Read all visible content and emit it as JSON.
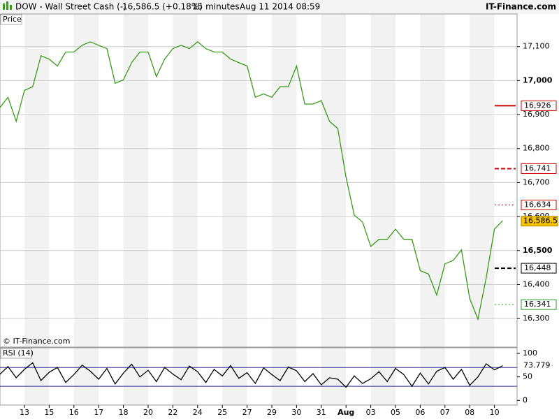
{
  "header": {
    "instrument": "DOW - Wall Street Cash (-)",
    "quote": "16,586.5 (+0.18%)",
    "interval": "15 minutes",
    "timestamp": "Aug 11 2014 08:59",
    "brand": "IT-Finance.com"
  },
  "chart_data": [
    {
      "type": "line",
      "title": "Price",
      "credit": "© IT-Finance.com",
      "categories": [
        null,
        null,
        null,
        "13",
        null,
        null,
        "15",
        null,
        null,
        "16",
        null,
        null,
        "17",
        null,
        null,
        "18",
        null,
        null,
        "20",
        null,
        null,
        "22",
        null,
        null,
        "24",
        null,
        null,
        "25",
        null,
        null,
        "27",
        null,
        null,
        "29",
        null,
        null,
        "30",
        null,
        null,
        "31",
        null,
        null,
        "Aug",
        null,
        null,
        "03",
        null,
        null,
        "05",
        null,
        null,
        "06",
        null,
        null,
        "07",
        null,
        null,
        "08",
        null,
        null,
        "10",
        null
      ],
      "series": [
        {
          "name": "Price",
          "color": "#3a9a1a",
          "values": [
            16920,
            16951,
            16880,
            16971,
            16982,
            17073,
            17063,
            17043,
            17084,
            17084,
            17104,
            17114,
            17104,
            17094,
            16992,
            17002,
            17053,
            17084,
            17084,
            17012,
            17063,
            17094,
            17104,
            17094,
            17114,
            17094,
            17084,
            17084,
            17063,
            17053,
            17043,
            16951,
            16961,
            16951,
            16982,
            16982,
            17043,
            16931,
            16931,
            16941,
            16880,
            16859,
            16716,
            16604,
            16584,
            16512,
            16533,
            16533,
            16563,
            16533,
            16533,
            16441,
            16431,
            16369,
            16461,
            16471,
            16502,
            16359,
            16298,
            16420,
            16563,
            16588
          ]
        }
      ],
      "last": {
        "value": 16586.5,
        "label": "16,586.5",
        "color": "#f5c400"
      },
      "levels": [
        {
          "value": 16926,
          "label": "16,926",
          "color": "#d00000",
          "style": "solid"
        },
        {
          "value": 16741,
          "label": "16,741",
          "color": "#d00000",
          "style": "dashed"
        },
        {
          "value": 16634,
          "label": "16,634",
          "color": "#d00000",
          "style": "dotted"
        },
        {
          "value": 16448,
          "label": "16,448",
          "color": "#000000",
          "style": "dashed"
        },
        {
          "value": 16341,
          "label": "16,341",
          "color": "#2a9a2a",
          "style": "dotted"
        }
      ],
      "ylim": [
        16216,
        17196
      ],
      "yticks": [
        {
          "value": 17100,
          "label": "17,100"
        },
        {
          "value": 17000,
          "label": "17,000"
        },
        {
          "value": 16900,
          "label": "16,900"
        },
        {
          "value": 16800,
          "label": "16,800"
        },
        {
          "value": 16700,
          "label": "16,700"
        },
        {
          "value": 16600,
          "label": "16,600"
        },
        {
          "value": 16500,
          "label": "16,500"
        },
        {
          "value": 16400,
          "label": "16,400"
        },
        {
          "value": 16300,
          "label": "16,300"
        }
      ],
      "grid": true
    },
    {
      "type": "line",
      "title": "RSI (14)",
      "series": [
        {
          "name": "RSI (14)",
          "color": "#000000",
          "values": [
            55,
            72,
            48,
            66,
            80,
            42,
            60,
            70,
            38,
            55,
            75,
            62,
            45,
            68,
            35,
            58,
            77,
            50,
            64,
            40,
            70,
            56,
            44,
            73,
            61,
            38,
            66,
            52,
            74,
            47,
            59,
            36,
            69,
            55,
            42,
            71,
            63,
            40,
            57,
            33,
            48,
            45,
            28,
            52,
            36,
            46,
            61,
            40,
            68,
            55,
            30,
            58,
            35,
            62,
            70,
            45,
            66,
            32,
            50,
            78,
            65,
            73.779
          ]
        }
      ],
      "last": {
        "value": 73.779,
        "label": "73.779"
      },
      "levels": [
        70,
        30
      ],
      "ylim": [
        -10,
        112
      ],
      "yticks": [
        100,
        50,
        0
      ]
    }
  ]
}
